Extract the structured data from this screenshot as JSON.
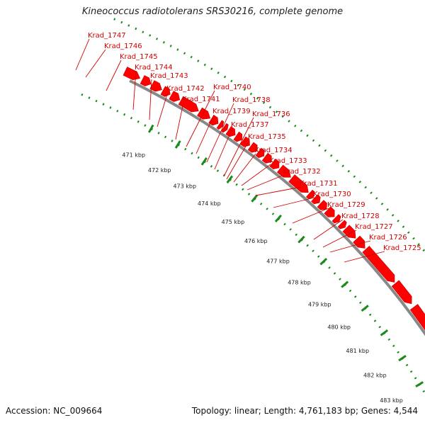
{
  "title": "Kineococcus radiotolerans SRS30216, complete genome",
  "footer": {
    "accession": "Accession: NC_009664",
    "summary": "Topology: linear; Length: 4,761,183 bp; Genes: 4,544"
  },
  "colors": {
    "gene": "#ff0000",
    "gene_edge": "#c00000",
    "backbone": "#888888",
    "dots": "#1a8a1a",
    "label": "#d00000"
  },
  "scale": {
    "unit": "kbp",
    "ticks": [
      "471 kbp",
      "472 kbp",
      "473 kbp",
      "474 kbp",
      "475 kbp",
      "476 kbp",
      "477 kbp",
      "478 kbp",
      "479 kbp",
      "480 kbp",
      "481 kbp",
      "482 kbp",
      "483 kbp"
    ]
  },
  "genes": [
    "Krad_1747",
    "Krad_1746",
    "Krad_1745",
    "Krad_1744",
    "Krad_1743",
    "Krad_1742",
    "Krad_1741",
    "Krad_1740",
    "Krad_1739",
    "Krad_1738",
    "Krad_1737",
    "Krad_1736",
    "Krad_1735",
    "Krad_1734",
    "Krad_1733",
    "Krad_1732",
    "Krad_1731",
    "Krad_1730",
    "Krad_1729",
    "Krad_1728",
    "Krad_1727",
    "Krad_1726",
    "Krad_1725"
  ]
}
